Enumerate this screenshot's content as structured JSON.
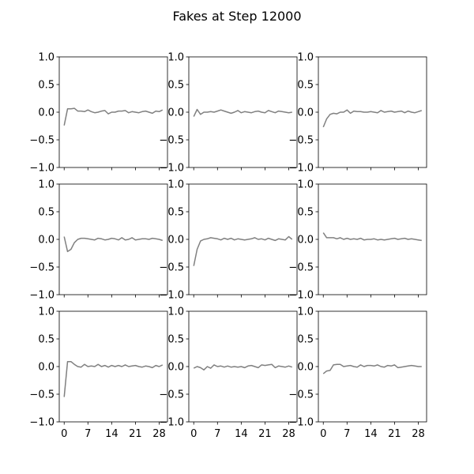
{
  "figure": {
    "title": "Fakes at Step 12000"
  },
  "style": {
    "line_color": "#808080",
    "axis_color": "#000000",
    "background": "#ffffff"
  },
  "chart_data": [
    {
      "type": "line",
      "row": 0,
      "col": 0,
      "xlim": [
        0,
        29
      ],
      "ylim": [
        -1.0,
        1.0
      ],
      "xticks": [
        0,
        7,
        14,
        21,
        28
      ],
      "yticks": [
        -1.0,
        -0.5,
        0.0,
        0.5,
        1.0
      ],
      "show_xticklabels": false,
      "show_yticklabels": true,
      "values": [
        -0.24,
        0.06,
        0.06,
        0.07,
        0.02,
        0.02,
        0.01,
        0.04,
        0.01,
        -0.01,
        0.0,
        0.02,
        0.03,
        -0.03,
        0.0,
        0.0,
        0.02,
        0.02,
        0.03,
        -0.01,
        0.01,
        0.0,
        -0.01,
        0.01,
        0.02,
        0.0,
        -0.02,
        0.02,
        0.01,
        0.04
      ]
    },
    {
      "type": "line",
      "row": 0,
      "col": 1,
      "xlim": [
        0,
        29
      ],
      "ylim": [
        -1.0,
        1.0
      ],
      "xticks": [
        0,
        7,
        14,
        21,
        28
      ],
      "yticks": [
        -1.0,
        -0.5,
        0.0,
        0.5,
        1.0
      ],
      "show_xticklabels": false,
      "show_yticklabels": true,
      "values": [
        -0.08,
        0.05,
        -0.04,
        0.0,
        0.0,
        0.01,
        0.0,
        0.02,
        0.04,
        0.02,
        0.0,
        -0.02,
        0.0,
        0.03,
        -0.01,
        0.01,
        0.0,
        -0.01,
        0.01,
        0.02,
        0.0,
        -0.01,
        0.03,
        0.01,
        -0.01,
        0.02,
        0.01,
        0.0,
        -0.01,
        0.0
      ]
    },
    {
      "type": "line",
      "row": 0,
      "col": 2,
      "xlim": [
        0,
        29
      ],
      "ylim": [
        -1.0,
        1.0
      ],
      "xticks": [
        0,
        7,
        14,
        21,
        28
      ],
      "yticks": [
        -1.0,
        -0.5,
        0.0,
        0.5,
        1.0
      ],
      "show_xticklabels": false,
      "show_yticklabels": true,
      "values": [
        -0.27,
        -0.12,
        -0.04,
        -0.02,
        -0.03,
        0.0,
        0.0,
        0.04,
        -0.02,
        0.02,
        0.01,
        0.01,
        0.0,
        0.0,
        0.01,
        0.0,
        -0.01,
        0.03,
        0.0,
        0.01,
        0.02,
        0.0,
        0.01,
        0.02,
        -0.01,
        0.02,
        0.0,
        -0.01,
        0.01,
        0.03
      ]
    },
    {
      "type": "line",
      "row": 1,
      "col": 0,
      "xlim": [
        0,
        29
      ],
      "ylim": [
        -1.0,
        1.0
      ],
      "xticks": [
        0,
        7,
        14,
        21,
        28
      ],
      "yticks": [
        -1.0,
        -0.5,
        0.0,
        0.5,
        1.0
      ],
      "show_xticklabels": false,
      "show_yticklabels": true,
      "values": [
        0.05,
        -0.22,
        -0.18,
        -0.06,
        0.0,
        0.02,
        0.02,
        0.01,
        0.0,
        -0.01,
        0.02,
        0.01,
        -0.01,
        0.0,
        0.02,
        0.01,
        -0.01,
        0.03,
        -0.01,
        0.0,
        0.03,
        -0.01,
        0.0,
        0.01,
        0.01,
        0.0,
        0.02,
        0.01,
        0.0,
        -0.02
      ]
    },
    {
      "type": "line",
      "row": 1,
      "col": 1,
      "xlim": [
        0,
        29
      ],
      "ylim": [
        -1.0,
        1.0
      ],
      "xticks": [
        0,
        7,
        14,
        21,
        28
      ],
      "yticks": [
        -1.0,
        -0.5,
        0.0,
        0.5,
        1.0
      ],
      "show_xticklabels": false,
      "show_yticklabels": true,
      "values": [
        -0.48,
        -0.18,
        -0.03,
        0.0,
        0.01,
        0.03,
        0.02,
        0.01,
        -0.01,
        0.02,
        0.0,
        0.02,
        -0.01,
        0.01,
        0.0,
        -0.01,
        0.0,
        0.01,
        0.03,
        0.0,
        0.01,
        -0.01,
        0.02,
        0.0,
        -0.02,
        0.01,
        0.0,
        -0.01,
        0.05,
        0.0
      ]
    },
    {
      "type": "line",
      "row": 1,
      "col": 2,
      "xlim": [
        0,
        29
      ],
      "ylim": [
        -1.0,
        1.0
      ],
      "xticks": [
        0,
        7,
        14,
        21,
        28
      ],
      "yticks": [
        -1.0,
        -0.5,
        0.0,
        0.5,
        1.0
      ],
      "show_xticklabels": false,
      "show_yticklabels": true,
      "values": [
        0.12,
        0.03,
        0.03,
        0.03,
        0.01,
        0.03,
        0.0,
        0.02,
        0.0,
        0.01,
        0.0,
        0.02,
        -0.01,
        0.0,
        0.0,
        0.01,
        -0.01,
        0.0,
        -0.01,
        0.0,
        0.01,
        0.02,
        0.0,
        0.01,
        0.02,
        0.0,
        0.01,
        0.0,
        -0.01,
        -0.02
      ]
    },
    {
      "type": "line",
      "row": 2,
      "col": 0,
      "xlim": [
        0,
        29
      ],
      "ylim": [
        -1.0,
        1.0
      ],
      "xticks": [
        0,
        7,
        14,
        21,
        28
      ],
      "yticks": [
        -1.0,
        -0.5,
        0.0,
        0.5,
        1.0
      ],
      "show_xticklabels": true,
      "show_yticklabels": true,
      "values": [
        -0.55,
        0.09,
        0.09,
        0.04,
        0.0,
        -0.01,
        0.04,
        0.0,
        0.01,
        0.0,
        0.04,
        0.0,
        0.02,
        -0.01,
        0.02,
        0.0,
        0.02,
        0.0,
        0.03,
        0.0,
        0.01,
        0.02,
        0.0,
        -0.01,
        0.01,
        0.0,
        -0.02,
        0.02,
        0.0,
        0.03
      ]
    },
    {
      "type": "line",
      "row": 2,
      "col": 1,
      "xlim": [
        0,
        29
      ],
      "ylim": [
        -1.0,
        1.0
      ],
      "xticks": [
        0,
        7,
        14,
        21,
        28
      ],
      "yticks": [
        -1.0,
        -0.5,
        0.0,
        0.5,
        1.0
      ],
      "show_xticklabels": true,
      "show_yticklabels": true,
      "values": [
        -0.03,
        0.0,
        -0.02,
        -0.06,
        0.0,
        -0.03,
        0.03,
        0.0,
        0.01,
        -0.01,
        0.01,
        -0.01,
        0.0,
        -0.01,
        0.0,
        -0.02,
        0.01,
        0.02,
        0.0,
        -0.02,
        0.03,
        0.02,
        0.03,
        0.04,
        -0.02,
        0.01,
        0.0,
        -0.01,
        0.01,
        -0.01
      ]
    },
    {
      "type": "line",
      "row": 2,
      "col": 2,
      "xlim": [
        0,
        29
      ],
      "ylim": [
        -1.0,
        1.0
      ],
      "xticks": [
        0,
        7,
        14,
        21,
        28
      ],
      "yticks": [
        -1.0,
        -0.5,
        0.0,
        0.5,
        1.0
      ],
      "show_xticklabels": true,
      "show_yticklabels": true,
      "values": [
        -0.13,
        -0.08,
        -0.07,
        0.03,
        0.04,
        0.04,
        0.0,
        0.01,
        0.02,
        0.0,
        -0.01,
        0.03,
        0.0,
        0.02,
        0.02,
        0.01,
        0.03,
        0.0,
        -0.01,
        0.02,
        0.01,
        0.03,
        -0.02,
        -0.01,
        0.0,
        0.01,
        0.02,
        0.01,
        0.0,
        0.0
      ]
    }
  ]
}
